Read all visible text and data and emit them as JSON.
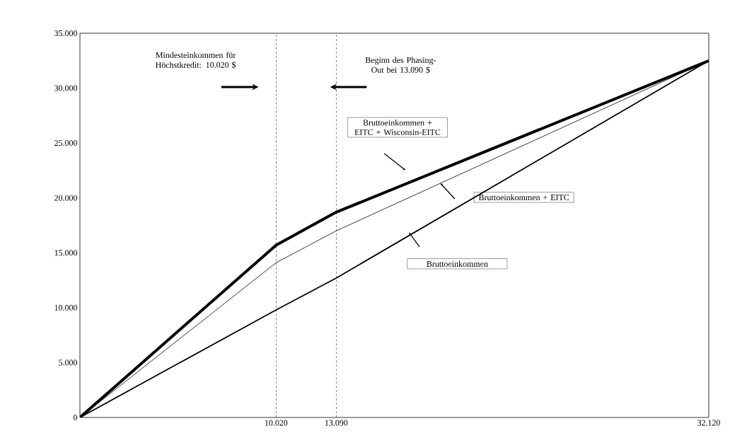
{
  "chart_data": {
    "type": "line",
    "x": [
      0,
      10020,
      13090,
      32120
    ],
    "series": [
      {
        "name": "Bruttoeinkommen + EITC + Wisconsin-EITC",
        "color": "#000000",
        "values": [
          0,
          15700,
          18700,
          32500
        ]
      },
      {
        "name": "Bruttoeinkommen + EITC",
        "color": "#000000",
        "values": [
          0,
          14100,
          17000,
          32500
        ]
      },
      {
        "name": "Bruttoeinkommen",
        "color": "#000000",
        "values": [
          0,
          9800,
          12700,
          32500
        ]
      }
    ],
    "xlim": [
      0,
      32120
    ],
    "ylim": [
      0,
      35000
    ],
    "xticks": [
      {
        "value": 10020,
        "label": "10.020"
      },
      {
        "value": 13090,
        "label": "13.090"
      },
      {
        "value": 32120,
        "label": "32.120"
      }
    ],
    "yticks": [
      0,
      {
        "value": 5000,
        "label": "5.000"
      },
      {
        "value": 10000,
        "label": "10.000"
      },
      {
        "value": 15000,
        "label": "15.000"
      },
      {
        "value": 20000,
        "label": "20.000"
      },
      {
        "value": 25000,
        "label": "25.000"
      },
      {
        "value": 30000,
        "label": "30.000"
      },
      {
        "value": 35000,
        "label": "35.000"
      }
    ],
    "ref_lines": [
      {
        "axis": "x",
        "value": 10020,
        "line_style": "dashed"
      },
      {
        "axis": "x",
        "value": 13090,
        "line_style": "dashed"
      }
    ],
    "annotations": [
      "Mindesteinkommen für Höchstkredit: 10.020 $",
      "Beginn des Phasing-Out bei 13.090 $"
    ],
    "grid": false,
    "legend": false,
    "marker": "none",
    "line_style": "solid"
  }
}
